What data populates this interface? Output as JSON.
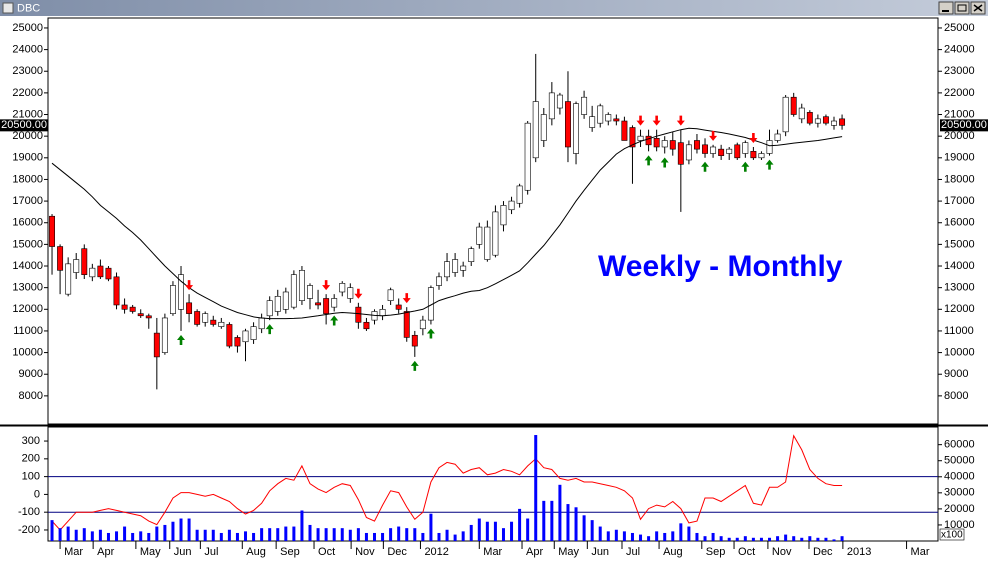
{
  "chart_data": [
    {
      "type": "candlestick",
      "title": "DBC",
      "annotation": "Weekly - Monthly",
      "annotation_color": "#0000ff",
      "xlim": [
        0,
        110.4
      ],
      "ylim": [
        6700,
        25460
      ],
      "yticks": [
        8000,
        9000,
        10000,
        11000,
        12000,
        13000,
        14000,
        15000,
        16000,
        17000,
        18000,
        19000,
        20000,
        21000,
        22000,
        23000,
        24000,
        25000
      ],
      "up_color": "#ffffff",
      "down_color": "#ff0000",
      "open": [
        16300,
        14900,
        12700,
        13700,
        14800,
        13500,
        14000,
        13900,
        13500,
        12200,
        12100,
        11800,
        11700,
        10900,
        10000,
        11800,
        12000,
        12300,
        11900,
        11400,
        11500,
        11200,
        11300,
        10700,
        10500,
        10600,
        11100,
        11700,
        11900,
        12000,
        12100,
        12400,
        12500,
        12300,
        12500,
        12100,
        12800,
        12500,
        12100,
        11400,
        11500,
        11700,
        12400,
        12200,
        11900,
        10800,
        11100,
        11500,
        13100,
        13500,
        13700,
        13800,
        14200,
        15000,
        14300,
        14500,
        15900,
        16600,
        16900,
        17500,
        19000,
        19800,
        20800,
        21300,
        21600,
        19200,
        21000,
        20400,
        20600,
        20700,
        20800,
        20700,
        20400,
        19800,
        20000,
        19900,
        19500,
        19800,
        19700,
        18900,
        19800,
        19600,
        19200,
        19400,
        19200,
        19600,
        19200,
        19300,
        19000,
        19200,
        19800,
        20200,
        21800,
        20800,
        21100,
        20600,
        20900,
        20500,
        20800
      ],
      "high": [
        16400,
        15000,
        14400,
        14600,
        15000,
        14100,
        14300,
        14000,
        13700,
        12500,
        12200,
        12000,
        11800,
        11600,
        11800,
        13300,
        14000,
        12700,
        12000,
        11900,
        11700,
        11600,
        11400,
        10800,
        11100,
        11400,
        11800,
        12600,
        12900,
        13000,
        13800,
        14000,
        13200,
        12900,
        12700,
        12700,
        13300,
        13200,
        12300,
        11600,
        12000,
        12200,
        13000,
        12500,
        12100,
        11000,
        11700,
        13100,
        13700,
        14600,
        14600,
        14200,
        14900,
        16000,
        16100,
        16800,
        17000,
        17200,
        17800,
        20700,
        23800,
        21300,
        22500,
        22000,
        23000,
        21600,
        22100,
        21400,
        21500,
        21100,
        21000,
        20900,
        20500,
        20300,
        20300,
        20300,
        20000,
        20200,
        20300,
        19800,
        20100,
        19900,
        19600,
        19600,
        19500,
        19700,
        19800,
        19500,
        19300,
        20300,
        20300,
        21900,
        22000,
        21500,
        21200,
        21000,
        21000,
        20900,
        21000
      ],
      "low": [
        13600,
        12700,
        12600,
        13400,
        13400,
        13300,
        13400,
        13300,
        12000,
        11800,
        11800,
        11600,
        11100,
        8300,
        9900,
        11700,
        11000,
        11400,
        11200,
        11200,
        11200,
        11100,
        10200,
        10000,
        9600,
        10400,
        10900,
        11500,
        11700,
        11800,
        12000,
        12200,
        12000,
        12000,
        11300,
        11900,
        12600,
        12300,
        11100,
        11000,
        11300,
        11500,
        12200,
        11800,
        10500,
        9800,
        10800,
        11300,
        12900,
        13300,
        13500,
        13500,
        14000,
        14800,
        14200,
        14400,
        15600,
        16400,
        16700,
        17300,
        18800,
        19500,
        20500,
        21000,
        18800,
        18700,
        20800,
        20200,
        20400,
        20500,
        20500,
        19800,
        17800,
        19500,
        19300,
        19300,
        19200,
        19100,
        16500,
        18700,
        19200,
        19000,
        19000,
        18900,
        18900,
        18900,
        19000,
        18900,
        18900,
        19100,
        19700,
        20000,
        20900,
        20600,
        20500,
        20400,
        20500,
        20300,
        20300
      ],
      "close": [
        14900,
        13800,
        14100,
        14300,
        13600,
        13900,
        13500,
        13400,
        12200,
        12000,
        11900,
        11700,
        11600,
        9800,
        11600,
        13100,
        13600,
        11800,
        11300,
        11800,
        11300,
        11400,
        10300,
        10300,
        11000,
        11200,
        11600,
        12400,
        12600,
        12800,
        13600,
        13800,
        13100,
        12200,
        11800,
        12500,
        13200,
        13000,
        11400,
        11100,
        11900,
        12000,
        12900,
        12000,
        10700,
        10300,
        11500,
        13000,
        13500,
        14200,
        14300,
        14000,
        14800,
        15800,
        15800,
        16500,
        16800,
        17000,
        17700,
        20600,
        21600,
        21000,
        22000,
        21900,
        19500,
        21500,
        21800,
        20900,
        21400,
        21000,
        20700,
        19800,
        19500,
        20000,
        19600,
        19500,
        19800,
        19400,
        18700,
        19600,
        19400,
        19200,
        19500,
        19100,
        19400,
        19000,
        19700,
        19000,
        19200,
        19800,
        20100,
        21800,
        21000,
        21300,
        20600,
        20800,
        20600,
        20700,
        20500
      ],
      "moving_average": {
        "color": "#000000",
        "values": [
          18750,
          18450,
          18150,
          17850,
          17550,
          17200,
          16800,
          16500,
          16200,
          15850,
          15550,
          15200,
          14800,
          14400,
          14000,
          13650,
          13300,
          13000,
          12750,
          12550,
          12350,
          12150,
          12000,
          11850,
          11750,
          11650,
          11600,
          11570,
          11570,
          11570,
          11580,
          11600,
          11650,
          11700,
          11760,
          11820,
          11850,
          11830,
          11800,
          11760,
          11720,
          11700,
          11730,
          11780,
          11850,
          11920,
          12000,
          12200,
          12400,
          12520,
          12630,
          12750,
          12830,
          12870,
          13000,
          13180,
          13370,
          13570,
          13780,
          14150,
          14550,
          14950,
          15420,
          15900,
          16450,
          17000,
          17500,
          17970,
          18430,
          18800,
          19170,
          19420,
          19600,
          19760,
          19880,
          20000,
          20100,
          20200,
          20300,
          20370,
          20340,
          20280,
          20220,
          20170,
          20100,
          20020,
          19940,
          19820,
          19700,
          19560,
          19580,
          19630,
          19680,
          19720,
          19760,
          19800,
          19860,
          19920,
          19980
        ]
      },
      "buy_signals": [
        16,
        27,
        35,
        45,
        47,
        74,
        76,
        81,
        86,
        89
      ],
      "buy_color": "#008000",
      "sell_signals": [
        17,
        34,
        38,
        44,
        73,
        75,
        78,
        82,
        87
      ],
      "sell_color": "#ff0000",
      "last_price": {
        "value": 20500,
        "label": "20500.00"
      }
    },
    {
      "type": "indicator",
      "xlim": [
        0,
        110.4
      ],
      "xticks": [
        {
          "value": 1.5,
          "label": "Mar"
        },
        {
          "value": 5.6,
          "label": "Apr"
        },
        {
          "value": 10.9,
          "label": "May"
        },
        {
          "value": 15.1,
          "label": "Jun"
        },
        {
          "value": 18.9,
          "label": "Jul"
        },
        {
          "value": 24.1,
          "label": "Aug"
        },
        {
          "value": 28.3,
          "label": "Sep"
        },
        {
          "value": 33,
          "label": "Oct"
        },
        {
          "value": 37.6,
          "label": "Nov"
        },
        {
          "value": 41.6,
          "label": "Dec"
        },
        {
          "value": 46.2,
          "label": "2012"
        },
        {
          "value": 53.5,
          "label": "Mar"
        },
        {
          "value": 58.8,
          "label": "Apr"
        },
        {
          "value": 62.8,
          "label": "May"
        },
        {
          "value": 66.9,
          "label": "Jun"
        },
        {
          "value": 71.2,
          "label": "Jul"
        },
        {
          "value": 75.8,
          "label": "Aug"
        },
        {
          "value": 81.1,
          "label": "Sep"
        },
        {
          "value": 85.1,
          "label": "Oct"
        },
        {
          "value": 89.3,
          "label": "Nov"
        },
        {
          "value": 94.4,
          "label": "Dec"
        },
        {
          "value": 98.6,
          "label": "2013"
        },
        {
          "value": 106.5,
          "label": "Mar"
        }
      ],
      "ylim": [
        -262,
        379
      ],
      "yticks": [
        -200,
        -100,
        0,
        100,
        200,
        300
      ],
      "y2lim": [
        0,
        71000
      ],
      "y2ticks": [
        10000,
        20000,
        30000,
        40000,
        50000,
        60000
      ],
      "y2_unit": "x100",
      "hlines": [
        100,
        -100
      ],
      "hline_color": "#000080",
      "series": [
        {
          "type": "line",
          "color": "#ff0000",
          "values": [
            -150,
            -200,
            -150,
            -100,
            -100,
            -100,
            -90,
            -80,
            -90,
            -100,
            -110,
            -120,
            -150,
            -170,
            -100,
            -20,
            10,
            10,
            0,
            -10,
            0,
            -20,
            -40,
            -80,
            -110,
            -90,
            -50,
            20,
            60,
            90,
            80,
            160,
            60,
            30,
            10,
            40,
            60,
            50,
            -30,
            -130,
            -150,
            -60,
            20,
            10,
            -70,
            -140,
            -100,
            70,
            150,
            180,
            170,
            120,
            140,
            150,
            110,
            120,
            140,
            130,
            110,
            160,
            200,
            150,
            140,
            90,
            80,
            90,
            70,
            70,
            60,
            50,
            40,
            20,
            -20,
            -140,
            -80,
            -60,
            -70,
            -40,
            -80,
            -160,
            -150,
            -20,
            -20,
            -40,
            -10,
            20,
            50,
            -50,
            -60,
            40,
            40,
            70,
            330,
            250,
            140,
            90,
            60,
            50,
            50
          ]
        },
        {
          "type": "bar",
          "axis": "y2",
          "color": "#0000ff",
          "values": [
            13000,
            8000,
            9000,
            7000,
            8000,
            6000,
            7000,
            5000,
            6000,
            9000,
            5000,
            6000,
            5000,
            9000,
            10000,
            12000,
            14000,
            14000,
            7000,
            7000,
            7000,
            5000,
            7000,
            5000,
            6000,
            5000,
            8000,
            8000,
            8000,
            9000,
            9000,
            19000,
            10000,
            8000,
            8000,
            8000,
            8000,
            7000,
            8000,
            5000,
            5000,
            5000,
            8000,
            9000,
            8000,
            8000,
            5000,
            17000,
            5000,
            7000,
            4000,
            6000,
            10000,
            14000,
            12000,
            12000,
            8000,
            12000,
            20000,
            14000,
            66000,
            25000,
            25000,
            35000,
            23000,
            21000,
            16000,
            13000,
            9000,
            6000,
            7000,
            6000,
            5000,
            4000,
            3000,
            6000,
            5000,
            6000,
            11000,
            9000,
            5000,
            3000,
            5000,
            3000,
            2000,
            2000,
            3000,
            2000,
            2000,
            2000,
            3000,
            4000,
            3000,
            2000,
            3000,
            2000,
            2000,
            1000,
            3000
          ]
        }
      ]
    }
  ]
}
